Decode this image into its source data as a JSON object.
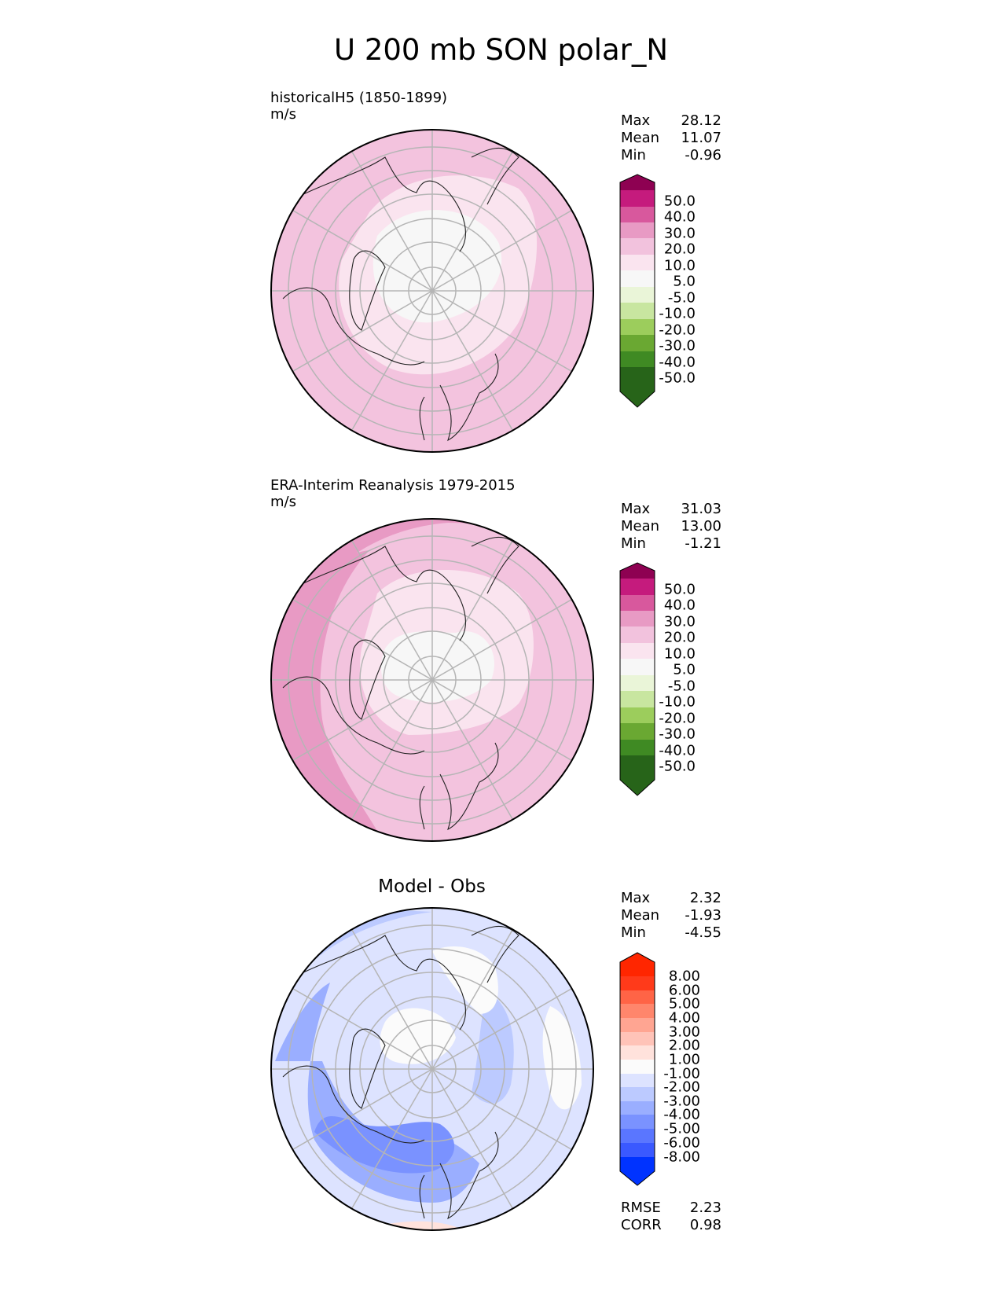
{
  "figure_title": "U 200 mb SON polar_N",
  "panels": [
    {
      "title_line1": "historicalH5 (1850-1899)",
      "title_line2": "m/s",
      "stats": [
        {
          "label": "Max",
          "value": "28.12"
        },
        {
          "label": "Mean",
          "value": "11.07"
        },
        {
          "label": "Min",
          "value": "-0.96"
        }
      ],
      "colorbar": {
        "labels": [
          "50.0",
          "40.0",
          "30.0",
          "20.0",
          "10.0",
          "5.0",
          "-5.0",
          "-10.0",
          "-20.0",
          "-30.0",
          "-40.0",
          "-50.0"
        ],
        "colors": [
          "#8e0152",
          "#c51b7d",
          "#de77ae",
          "#f1b6da",
          "#fde0ef",
          "#f7f7f7",
          "#e6f5d0",
          "#b8e186",
          "#7fbc41",
          "#4d9221",
          "#276419"
        ],
        "top_color": "#8e0152",
        "bottom_color": "#276419",
        "mid_colors": [
          "#c51b7d",
          "#d8589d",
          "#e89ac4",
          "#f2c2dd",
          "#fae4ef",
          "#f7f7f7",
          "#eaf5d8",
          "#c8e6a0",
          "#9ccd5c",
          "#6aa832",
          "#3f8a23"
        ]
      }
    },
    {
      "title_line1": "ERA-Interim Reanalysis 1979-2015",
      "title_line2": "m/s",
      "stats": [
        {
          "label": "Max",
          "value": "31.03"
        },
        {
          "label": "Mean",
          "value": "13.00"
        },
        {
          "label": "Min",
          "value": "-1.21"
        }
      ],
      "colorbar": {
        "labels": [
          "50.0",
          "40.0",
          "30.0",
          "20.0",
          "10.0",
          "5.0",
          "-5.0",
          "-10.0",
          "-20.0",
          "-30.0",
          "-40.0",
          "-50.0"
        ],
        "top_color": "#8e0152",
        "bottom_color": "#276419",
        "mid_colors": [
          "#c51b7d",
          "#d8589d",
          "#e89ac4",
          "#f2c2dd",
          "#fae4ef",
          "#f7f7f7",
          "#eaf5d8",
          "#c8e6a0",
          "#9ccd5c",
          "#6aa832",
          "#3f8a23"
        ]
      }
    },
    {
      "title_line1": "Model - Obs",
      "stats": [
        {
          "label": "Max",
          "value": "2.32"
        },
        {
          "label": "Mean",
          "value": "-1.93"
        },
        {
          "label": "Min",
          "value": "-4.55"
        }
      ],
      "footer_stats": [
        {
          "label": "RMSE",
          "value": "2.23"
        },
        {
          "label": "CORR",
          "value": "0.98"
        }
      ],
      "colorbar": {
        "labels": [
          "8.00",
          "6.00",
          "5.00",
          "4.00",
          "3.00",
          "2.00",
          "1.00",
          "-1.00",
          "-2.00",
          "-3.00",
          "-4.00",
          "-5.00",
          "-6.00",
          "-8.00"
        ],
        "top_color": "#ff2600",
        "bottom_color": "#0033ff",
        "mid_colors": [
          "#ff3a1a",
          "#ff6446",
          "#ff866c",
          "#ffa592",
          "#ffc3b8",
          "#ffe2dc",
          "#fbfbfb",
          "#dde3ff",
          "#bccaff",
          "#9aaeff",
          "#7a92ff",
          "#5a76ff",
          "#3a59ff"
        ]
      }
    }
  ]
}
